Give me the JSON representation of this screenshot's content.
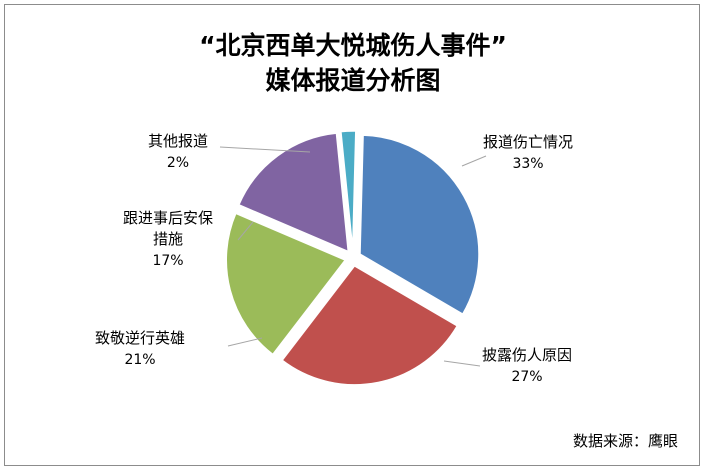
{
  "chart_data": {
    "type": "pie",
    "title_line1": "“北京西单大悦城伤人事件”",
    "title_line2": "媒体报道分析图",
    "slices": [
      {
        "name": "报道伤亡情况",
        "value": 33,
        "label": "33%",
        "color": "#4f81bd"
      },
      {
        "name": "披露伤人原因",
        "value": 27,
        "label": "27%",
        "color": "#c0504d"
      },
      {
        "name": "致敬逆行英雄",
        "value": 21,
        "label": "21%",
        "color": "#9bbb59"
      },
      {
        "name": "跟进事后安保措施",
        "name_lines": [
          "跟进事后安保",
          "措施"
        ],
        "value": 17,
        "label": "17%",
        "color": "#8064a2"
      },
      {
        "name": "其他报道",
        "value": 2,
        "label": "2%",
        "color": "#4bacc6"
      }
    ],
    "source": "数据来源：鹰眼"
  }
}
